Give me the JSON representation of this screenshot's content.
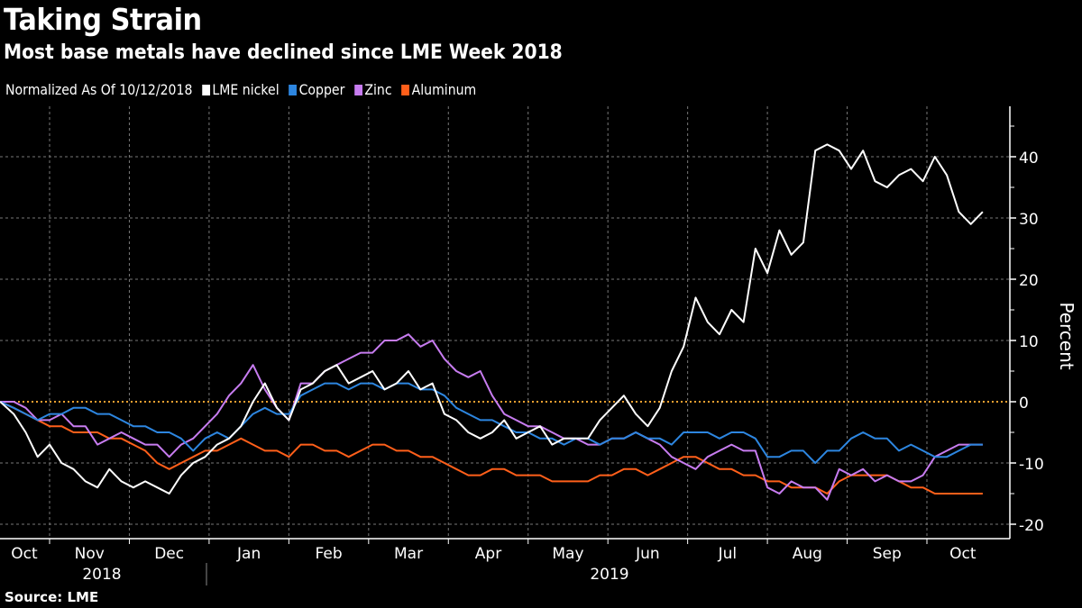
{
  "header": {
    "title": "Taking Strain",
    "subtitle": "Most base metals have declined since LME Week 2018"
  },
  "legend": {
    "note": "Normalized As Of 10/12/2018",
    "items": [
      {
        "label": "LME nickel",
        "color": "#ffffff"
      },
      {
        "label": "Copper",
        "color": "#2d86e0"
      },
      {
        "label": "Zinc",
        "color": "#c77cf0"
      },
      {
        "label": "Aluminum",
        "color": "#ff5f1a"
      }
    ]
  },
  "footer": {
    "source": "Source: LME"
  },
  "chart_data": {
    "type": "line",
    "title": "Taking Strain",
    "subtitle": "Most base metals have declined since LME Week 2018",
    "xlabel": "",
    "ylabel": "Percent",
    "ylim": [
      -22,
      48
    ],
    "yticks": [
      -20,
      -10,
      0,
      10,
      20,
      30,
      40
    ],
    "x_unit": "months since 2018-10-01 (fractional)",
    "xlim": [
      0.38,
      12.7
    ],
    "month_ticks": [
      {
        "label": "Oct",
        "pos": 0
      },
      {
        "label": "Nov",
        "pos": 1
      },
      {
        "label": "Dec",
        "pos": 2
      },
      {
        "label": "Jan",
        "pos": 3
      },
      {
        "label": "Feb",
        "pos": 4
      },
      {
        "label": "Mar",
        "pos": 5
      },
      {
        "label": "Apr",
        "pos": 6
      },
      {
        "label": "May",
        "pos": 7
      },
      {
        "label": "Jun",
        "pos": 8
      },
      {
        "label": "Jul",
        "pos": 9
      },
      {
        "label": "Aug",
        "pos": 10
      },
      {
        "label": "Sep",
        "pos": 11
      },
      {
        "label": "Oct",
        "pos": 12
      }
    ],
    "year_labels": [
      {
        "label": "2018",
        "pos": 1.2
      },
      {
        "label": "2019",
        "pos": 7.6
      }
    ],
    "reference_line": {
      "y": 0,
      "color": "#f0a030",
      "style": "dotted"
    },
    "grid": true,
    "x": [
      0.38,
      0.55,
      0.7,
      0.85,
      1.0,
      1.15,
      1.3,
      1.45,
      1.6,
      1.75,
      1.9,
      2.05,
      2.2,
      2.35,
      2.5,
      2.65,
      2.8,
      2.95,
      3.1,
      3.25,
      3.4,
      3.55,
      3.7,
      3.85,
      4.0,
      4.15,
      4.3,
      4.45,
      4.6,
      4.75,
      4.9,
      5.05,
      5.2,
      5.35,
      5.5,
      5.65,
      5.8,
      5.95,
      6.1,
      6.25,
      6.4,
      6.55,
      6.7,
      6.85,
      7.0,
      7.15,
      7.3,
      7.45,
      7.6,
      7.75,
      7.9,
      8.05,
      8.2,
      8.35,
      8.5,
      8.65,
      8.8,
      8.95,
      9.1,
      9.25,
      9.4,
      9.55,
      9.7,
      9.85,
      10.0,
      10.15,
      10.3,
      10.45,
      10.6,
      10.75,
      10.9,
      11.05,
      11.2,
      11.35,
      11.5,
      11.65,
      11.8,
      11.95,
      12.1,
      12.25,
      12.4,
      12.55,
      12.7
    ],
    "series": [
      {
        "name": "LME nickel",
        "color": "#ffffff",
        "values": [
          0,
          -2,
          -5,
          -9,
          -7,
          -10,
          -11,
          -13,
          -14,
          -11,
          -13,
          -14,
          -13,
          -14,
          -15,
          -12,
          -10,
          -9,
          -7,
          -6,
          -4,
          0,
          3,
          -1,
          -3,
          2,
          3,
          5,
          6,
          3,
          4,
          5,
          2,
          3,
          5,
          2,
          3,
          -2,
          -3,
          -5,
          -6,
          -5,
          -3,
          -6,
          -5,
          -4,
          -7,
          -6,
          -6,
          -6,
          -3,
          -1,
          1,
          -2,
          -4,
          -1,
          5,
          9,
          17,
          13,
          11,
          15,
          13,
          25,
          21,
          28,
          24,
          26,
          41,
          42,
          41,
          38,
          41,
          36,
          35,
          37,
          38,
          36,
          40,
          37,
          31,
          29,
          31
        ]
      },
      {
        "name": "Copper",
        "color": "#2d86e0",
        "values": [
          0,
          -1,
          -2,
          -3,
          -2,
          -2,
          -1,
          -1,
          -2,
          -2,
          -3,
          -4,
          -4,
          -5,
          -5,
          -6,
          -8,
          -6,
          -5,
          -6,
          -4,
          -2,
          -1,
          -2,
          -2,
          1,
          2,
          3,
          3,
          2,
          3,
          3,
          2,
          3,
          3,
          2,
          2,
          1,
          -1,
          -2,
          -3,
          -3,
          -4,
          -5,
          -5,
          -6,
          -6,
          -7,
          -6,
          -6,
          -7,
          -6,
          -6,
          -5,
          -6,
          -6,
          -7,
          -5,
          -5,
          -5,
          -6,
          -5,
          -5,
          -6,
          -9,
          -9,
          -8,
          -8,
          -10,
          -8,
          -8,
          -6,
          -5,
          -6,
          -6,
          -8,
          -7,
          -8,
          -9,
          -9,
          -8,
          -7,
          -7
        ]
      },
      {
        "name": "Zinc",
        "color": "#c77cf0",
        "values": [
          0,
          0,
          -1,
          -3,
          -3,
          -2,
          -4,
          -4,
          -7,
          -6,
          -5,
          -6,
          -7,
          -7,
          -9,
          -7,
          -6,
          -4,
          -2,
          1,
          3,
          6,
          2,
          -1,
          -3,
          3,
          3,
          5,
          6,
          7,
          8,
          8,
          10,
          10,
          11,
          9,
          10,
          7,
          5,
          4,
          5,
          1,
          -2,
          -3,
          -4,
          -4,
          -5,
          -6,
          -6,
          -7,
          -7,
          -6,
          -6,
          -5,
          -6,
          -7,
          -9,
          -10,
          -11,
          -9,
          -8,
          -7,
          -8,
          -8,
          -14,
          -15,
          -13,
          -14,
          -14,
          -16,
          -11,
          -12,
          -11,
          -13,
          -12,
          -13,
          -13,
          -12,
          -9,
          -8,
          -7,
          -7,
          -7
        ]
      },
      {
        "name": "Aluminum",
        "color": "#ff5f1a",
        "values": [
          0,
          -1,
          -2,
          -3,
          -4,
          -4,
          -5,
          -5,
          -5,
          -6,
          -6,
          -7,
          -8,
          -10,
          -11,
          -10,
          -9,
          -8,
          -8,
          -7,
          -6,
          -7,
          -8,
          -8,
          -9,
          -7,
          -7,
          -8,
          -8,
          -9,
          -8,
          -7,
          -7,
          -8,
          -8,
          -9,
          -9,
          -10,
          -11,
          -12,
          -12,
          -11,
          -11,
          -12,
          -12,
          -12,
          -13,
          -13,
          -13,
          -13,
          -12,
          -12,
          -11,
          -11,
          -12,
          -11,
          -10,
          -9,
          -9,
          -10,
          -11,
          -11,
          -12,
          -12,
          -13,
          -13,
          -14,
          -14,
          -14,
          -15,
          -13,
          -12,
          -12,
          -12,
          -12,
          -13,
          -14,
          -14,
          -15,
          -15,
          -15,
          -15,
          -15
        ]
      }
    ]
  }
}
